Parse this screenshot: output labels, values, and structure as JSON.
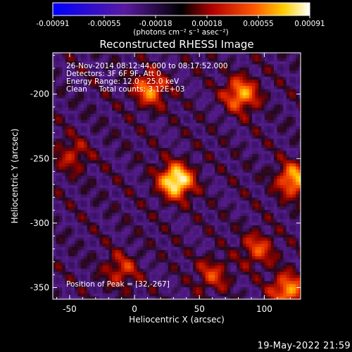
{
  "colorbar": {
    "ticks": [
      "-0.00091",
      "-0.00055",
      "-0.00018",
      "0.00018",
      "0.00055",
      "0.00091"
    ],
    "unit_label": "(photons cm⁻² s⁻¹ asec⁻²)",
    "colors": [
      "#0000ff",
      "#6a0c8c",
      "#000000",
      "#b00000",
      "#ff5500",
      "#ffd200",
      "#ffffff"
    ]
  },
  "chart_data": {
    "type": "heatmap",
    "title": "Reconstructed RHESSI Image",
    "xlabel": "Heliocentric X (arcsec)",
    "ylabel": "Heliocentric Y (arcsec)",
    "xlim": [
      -63,
      128
    ],
    "ylim": [
      -359,
      -168
    ],
    "xticks": [
      "-50",
      "0",
      "50",
      "100"
    ],
    "yticks": [
      "-200",
      "-250",
      "-300",
      "-350"
    ],
    "xtick_values": [
      -50,
      0,
      50,
      100
    ],
    "ytick_values": [
      -200,
      -250,
      -300,
      -350
    ],
    "sources": [
      {
        "x": 32,
        "y": -267,
        "peak": 0.00091
      },
      {
        "x": 123,
        "y": -266,
        "peak": 0.00065
      },
      {
        "x": 82,
        "y": -200,
        "peak": 0.00062
      },
      {
        "x": 12,
        "y": -196,
        "peak": 0.00055
      },
      {
        "x": 118,
        "y": -352,
        "peak": 0.0006
      },
      {
        "x": 95,
        "y": -320,
        "peak": 0.0004
      },
      {
        "x": -10,
        "y": -336,
        "peak": 0.00035
      },
      {
        "x": -48,
        "y": -247,
        "peak": 0.0003
      },
      {
        "x": 60,
        "y": -340,
        "peak": 0.00035
      }
    ],
    "annotations": {
      "time": "26-Nov-2014 08:12:44.000 to 08:17:52.000",
      "detectors": "Detectors: 3F 6F 9F, Att 0",
      "energy": "Energy Range: 12.0 - 25.0 keV",
      "method": "Clean     Total counts: 3.12E+03",
      "peak": "Position of Peak = [32,-267]"
    }
  },
  "timestamp": "19-May-2022 21:59"
}
